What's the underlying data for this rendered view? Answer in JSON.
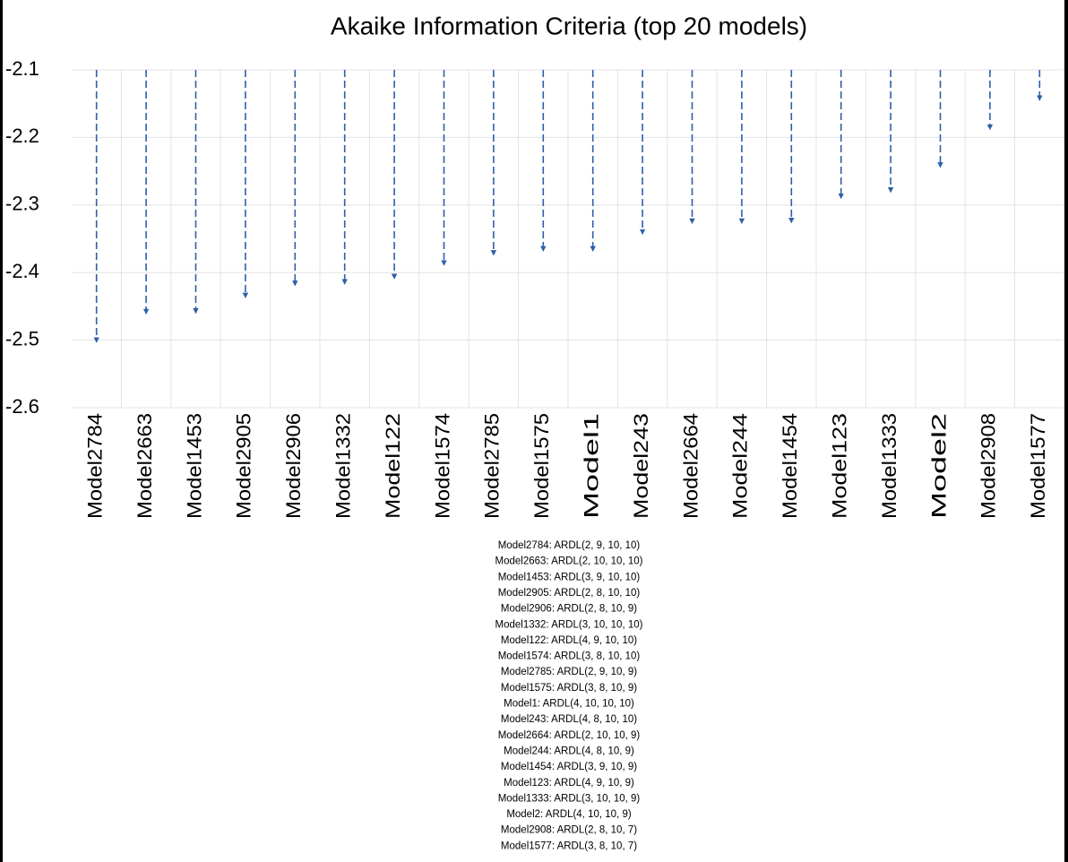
{
  "chart_data": {
    "type": "drop-arrow",
    "title": "Akaike Information Criteria (top 20 models)",
    "categories": [
      "Model2784",
      "Model2663",
      "Model1453",
      "Model2905",
      "Model2906",
      "Model1332",
      "Model122",
      "Model1574",
      "Model2785",
      "Model1575",
      "Model1",
      "Model243",
      "Model2664",
      "Model244",
      "Model1454",
      "Model123",
      "Model1333",
      "Model2",
      "Model2908",
      "Model1577"
    ],
    "values": [
      -2.5,
      -2.458,
      -2.457,
      -2.434,
      -2.416,
      -2.414,
      -2.406,
      -2.386,
      -2.371,
      -2.365,
      -2.365,
      -2.34,
      -2.324,
      -2.324,
      -2.323,
      -2.287,
      -2.278,
      -2.241,
      -2.185,
      -2.142
    ],
    "color": "#2e5fa8",
    "ylim": [
      -2.6,
      -2.1
    ],
    "yticks": [
      -2.6,
      -2.5,
      -2.4,
      -2.3,
      -2.2,
      -2.1
    ],
    "grid": true,
    "annotations": [
      "Model2784: ARDL(2, 9, 10, 10)",
      "Model2663: ARDL(2, 10, 10, 10)",
      "Model1453: ARDL(3, 9, 10, 10)",
      "Model2905: ARDL(2, 8, 10, 10)",
      "Model2906: ARDL(2, 8, 10, 9)",
      "Model1332: ARDL(3, 10, 10, 10)",
      "Model122: ARDL(4, 9, 10, 10)",
      "Model1574: ARDL(3, 8, 10, 10)",
      "Model2785: ARDL(2, 9, 10, 9)",
      "Model1575: ARDL(3, 8, 10, 9)",
      "Model1: ARDL(4, 10, 10, 10)",
      "Model243: ARDL(4, 8, 10, 10)",
      "Model2664: ARDL(2, 10, 10, 9)",
      "Model244: ARDL(4, 8, 10, 9)",
      "Model1454: ARDL(3, 9, 10, 9)",
      "Model123: ARDL(4, 9, 10, 9)",
      "Model1333: ARDL(3, 10, 10, 9)",
      "Model2: ARDL(4, 10, 10, 9)",
      "Model2908: ARDL(2, 8, 10, 7)",
      "Model1577: ARDL(3, 8, 10, 7)"
    ]
  }
}
